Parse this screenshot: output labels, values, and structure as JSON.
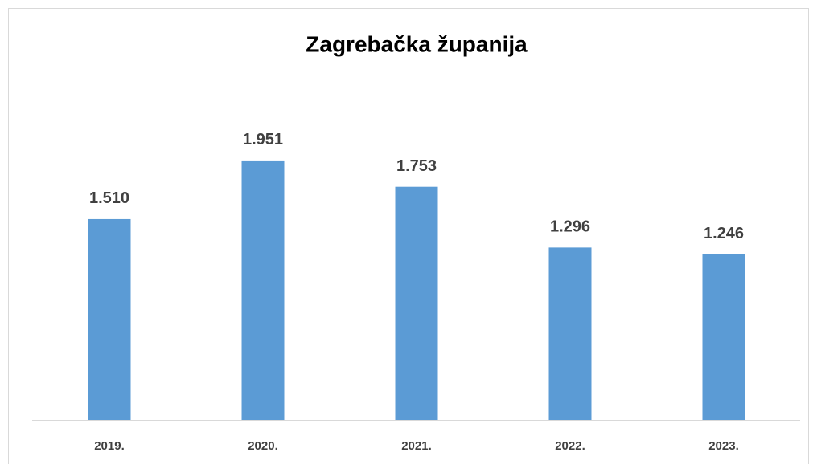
{
  "chart_data": {
    "type": "bar",
    "title": "Zagrebačka županija",
    "categories": [
      "2019.",
      "2020.",
      "2021.",
      "2022.",
      "2023."
    ],
    "values": [
      1510,
      1951,
      1753,
      1296,
      1246
    ],
    "value_labels": [
      "1.510",
      "1.951",
      "1.753",
      "1.296",
      "1.246"
    ],
    "color": "#5b9bd5",
    "ylim": [
      0,
      2500
    ]
  }
}
